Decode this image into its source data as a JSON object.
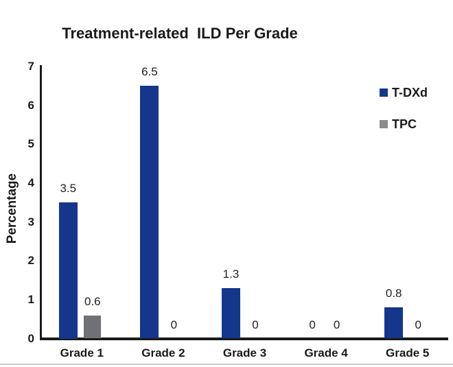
{
  "page": {
    "background_color": "#ffffff",
    "bottom_rule_color": "#c7c9cb",
    "axis_color": "#1a1a1a",
    "text_color": "#1a1a1a"
  },
  "chart_data": {
    "type": "bar",
    "title": "Treatment-related  ILD Per Grade",
    "categories": [
      "Grade 1",
      "Grade 2",
      "Grade 3",
      "Grade 4",
      "Grade 5"
    ],
    "series": [
      {
        "name": "T-DXd",
        "color": "#14378c",
        "legend_color": "#14378c",
        "values": [
          3.5,
          6.5,
          1.3,
          0,
          0.8
        ],
        "labels": [
          "3.5",
          "6.5",
          "1.3",
          "0",
          "0.8"
        ]
      },
      {
        "name": "TPC",
        "color": "#6f7174",
        "legend_color": "#8a8c8e",
        "values": [
          0.6,
          0,
          0,
          0,
          0
        ],
        "labels": [
          "0.6",
          "0",
          "0",
          "0",
          "0"
        ]
      }
    ],
    "xlabel": "",
    "ylabel": "Percentage",
    "ylim": [
      0,
      7
    ],
    "yticks": [
      0,
      1,
      2,
      3,
      4,
      5,
      6,
      7
    ],
    "grid": false,
    "legend_position": "upper right",
    "value_labels_shown": true
  }
}
